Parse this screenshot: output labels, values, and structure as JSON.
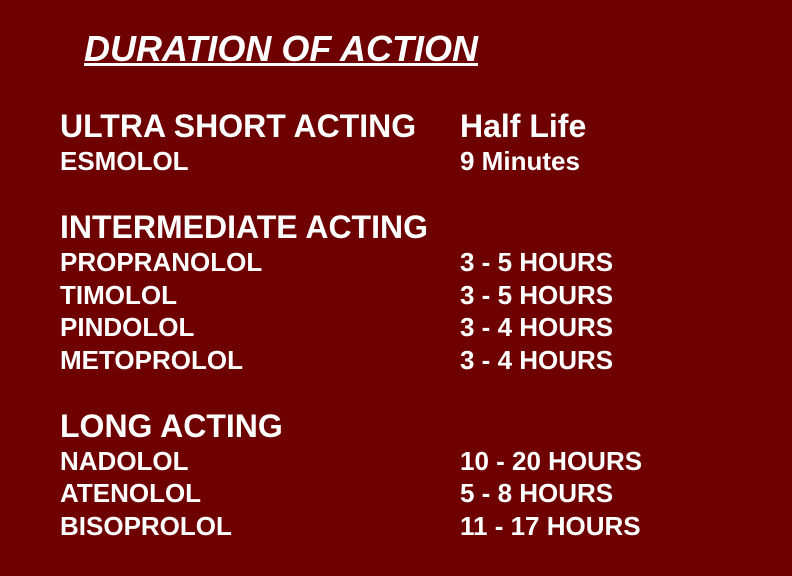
{
  "background_color": "#6e0000",
  "text_color": "#ffffff",
  "title": "DURATION OF ACTION",
  "title_fontsize": 36,
  "header_fontsize": 32,
  "item_fontsize": 26,
  "sections": [
    {
      "name": "ULTRA SHORT ACTING",
      "right_header": "Half Life",
      "drugs": [
        {
          "drug": "ESMOLOL",
          "half_life": "9 Minutes"
        }
      ]
    },
    {
      "name": "INTERMEDIATE ACTING",
      "right_header": "",
      "drugs": [
        {
          "drug": "PROPRANOLOL",
          "half_life": "3 - 5 HOURS"
        },
        {
          "drug": "TIMOLOL",
          "half_life": "3 - 5 HOURS"
        },
        {
          "drug": "PINDOLOL",
          "half_life": "3 - 4 HOURS"
        },
        {
          "drug": "METOPROLOL",
          "half_life": "3 - 4 HOURS"
        }
      ]
    },
    {
      "name": "LONG ACTING",
      "right_header": "",
      "drugs": [
        {
          "drug": "NADOLOL",
          "half_life": "10 - 20 HOURS"
        },
        {
          "drug": "ATENOLOL",
          "half_life": "5 - 8 HOURS"
        },
        {
          "drug": "BISOPROLOL",
          "half_life": "11 - 17 HOURS"
        }
      ]
    }
  ]
}
